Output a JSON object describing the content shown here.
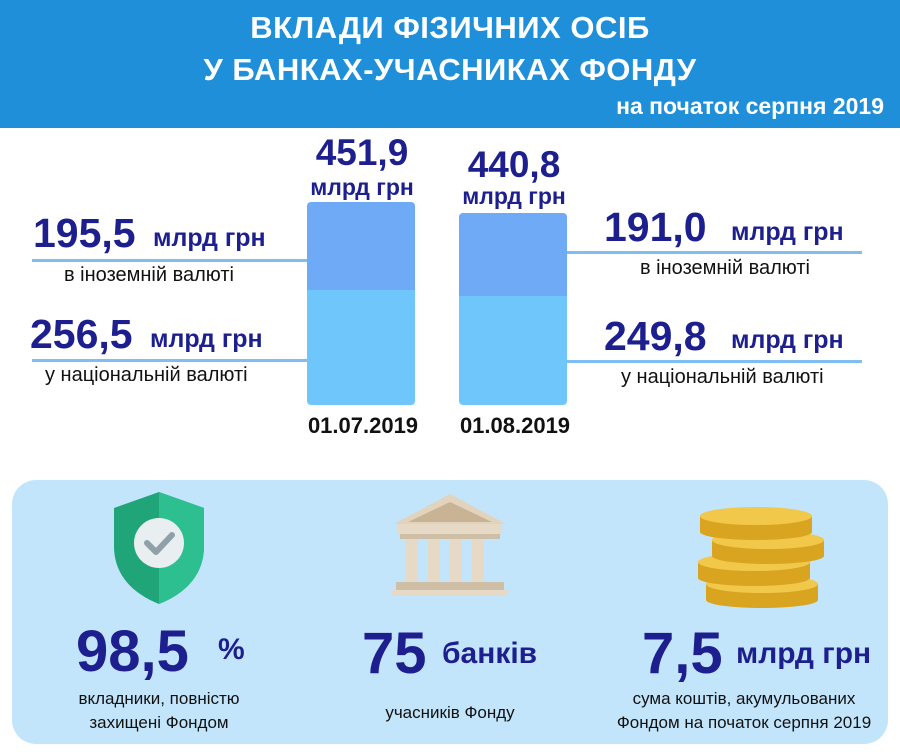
{
  "header": {
    "title_line1": "ВКЛАДИ ФІЗИЧНИХ ОСІБ",
    "title_line2": "У БАНКАХ-УЧАСНИКАХ ФОНДУ",
    "subtitle": "на початок серпня 2019"
  },
  "chart_data": {
    "type": "bar",
    "stacked": true,
    "categories": [
      "01.07.2019",
      "01.08.2019"
    ],
    "series": [
      {
        "name": "у національній валюті",
        "values": [
          256.5,
          249.8
        ],
        "color": "#6ec6fb"
      },
      {
        "name": "в іноземній валюті",
        "values": [
          195.5,
          191.0
        ],
        "color": "#6eaaf6"
      }
    ],
    "totals": [
      451.9,
      440.8
    ],
    "unit": "млрд грн",
    "labels": {
      "total_1": "451,9",
      "total_2": "440,8",
      "foreign_1": "195,5",
      "foreign_2": "191,0",
      "national_1": "256,5",
      "national_2": "249,8",
      "unit": "млрд грн",
      "foreign_caption": "в іноземній валюті",
      "national_caption": "у національній валюті"
    }
  },
  "stats": [
    {
      "value": "98,5",
      "unit": "%",
      "caption_line1": "вкладники, повністю",
      "caption_line2": "захищені Фондом",
      "icon": "shield-check-icon"
    },
    {
      "value": "75",
      "unit": "банків",
      "caption_line1": "учасників Фонду",
      "caption_line2": "",
      "icon": "bank-building-icon"
    },
    {
      "value": "7,5",
      "unit": "млрд грн",
      "caption_line1": "сума коштів, акумульованих",
      "caption_line2": "Фондом на початок серпня 2019",
      "icon": "coins-stack-icon"
    }
  ],
  "colors": {
    "header": "#1e8fd8",
    "value_text": "#1d1f8f",
    "bar_foreign": "#6eaaf6",
    "bar_national": "#6ec6fb",
    "panel": "#c2e5fb",
    "shield": "#2dbf8f",
    "coins": "#f0c232"
  }
}
